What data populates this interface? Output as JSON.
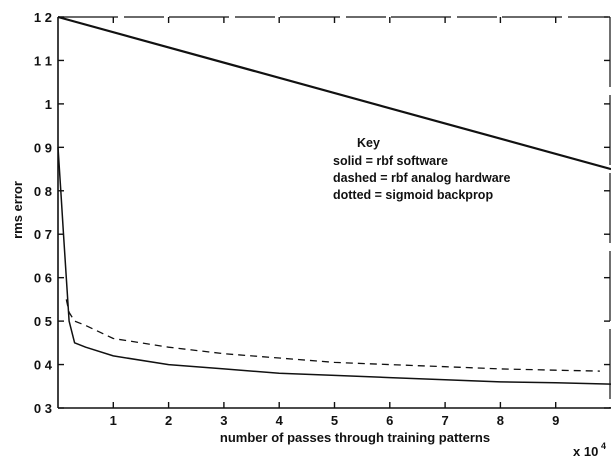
{
  "chart_data": {
    "type": "line",
    "xlabel": "number of passes through training patterns",
    "x_multiplier_label": "x 10",
    "x_multiplier_exponent": "4",
    "ylabel": "rms error",
    "xlim": [
      0,
      10
    ],
    "ylim": [
      0.3,
      1.2
    ],
    "x_ticks": [
      1,
      2,
      3,
      4,
      5,
      6,
      7,
      8,
      9
    ],
    "y_ticks": [
      0.3,
      0.4,
      0.5,
      0.6,
      0.7,
      0.8,
      0.9,
      1.0,
      1.1,
      1.2
    ],
    "y_tick_labels": [
      "0 3",
      "0 4",
      "0 5",
      "0 6",
      "0 7",
      "0 8",
      "0 9",
      "1",
      "1 1",
      "1 2"
    ],
    "grid": false,
    "legend": {
      "title": "Key",
      "entries": [
        "solid = rbf software",
        "dashed = rbf analog hardware",
        "dotted = sigmoid backprop"
      ]
    },
    "series": [
      {
        "style": "solid",
        "x": [
          0,
          0.05,
          0.1,
          0.15,
          0.2,
          0.3,
          0.5,
          1,
          2,
          3,
          4,
          5,
          6,
          7,
          8,
          9,
          10
        ],
        "y": [
          0.9,
          0.8,
          0.7,
          0.6,
          0.5,
          0.45,
          0.44,
          0.42,
          0.4,
          0.39,
          0.38,
          0.375,
          0.37,
          0.365,
          0.36,
          0.358,
          0.355
        ]
      },
      {
        "style": "dashed",
        "x": [
          0.15,
          0.2,
          0.3,
          0.5,
          1,
          2,
          3,
          4,
          5,
          6,
          7,
          8,
          9,
          9.8
        ],
        "y": [
          0.55,
          0.52,
          0.5,
          0.49,
          0.46,
          0.44,
          0.425,
          0.415,
          0.405,
          0.4,
          0.395,
          0.39,
          0.387,
          0.385
        ]
      },
      {
        "style": "dotted",
        "x": [
          0,
          10
        ],
        "y": [
          1.2,
          0.85
        ]
      }
    ]
  }
}
